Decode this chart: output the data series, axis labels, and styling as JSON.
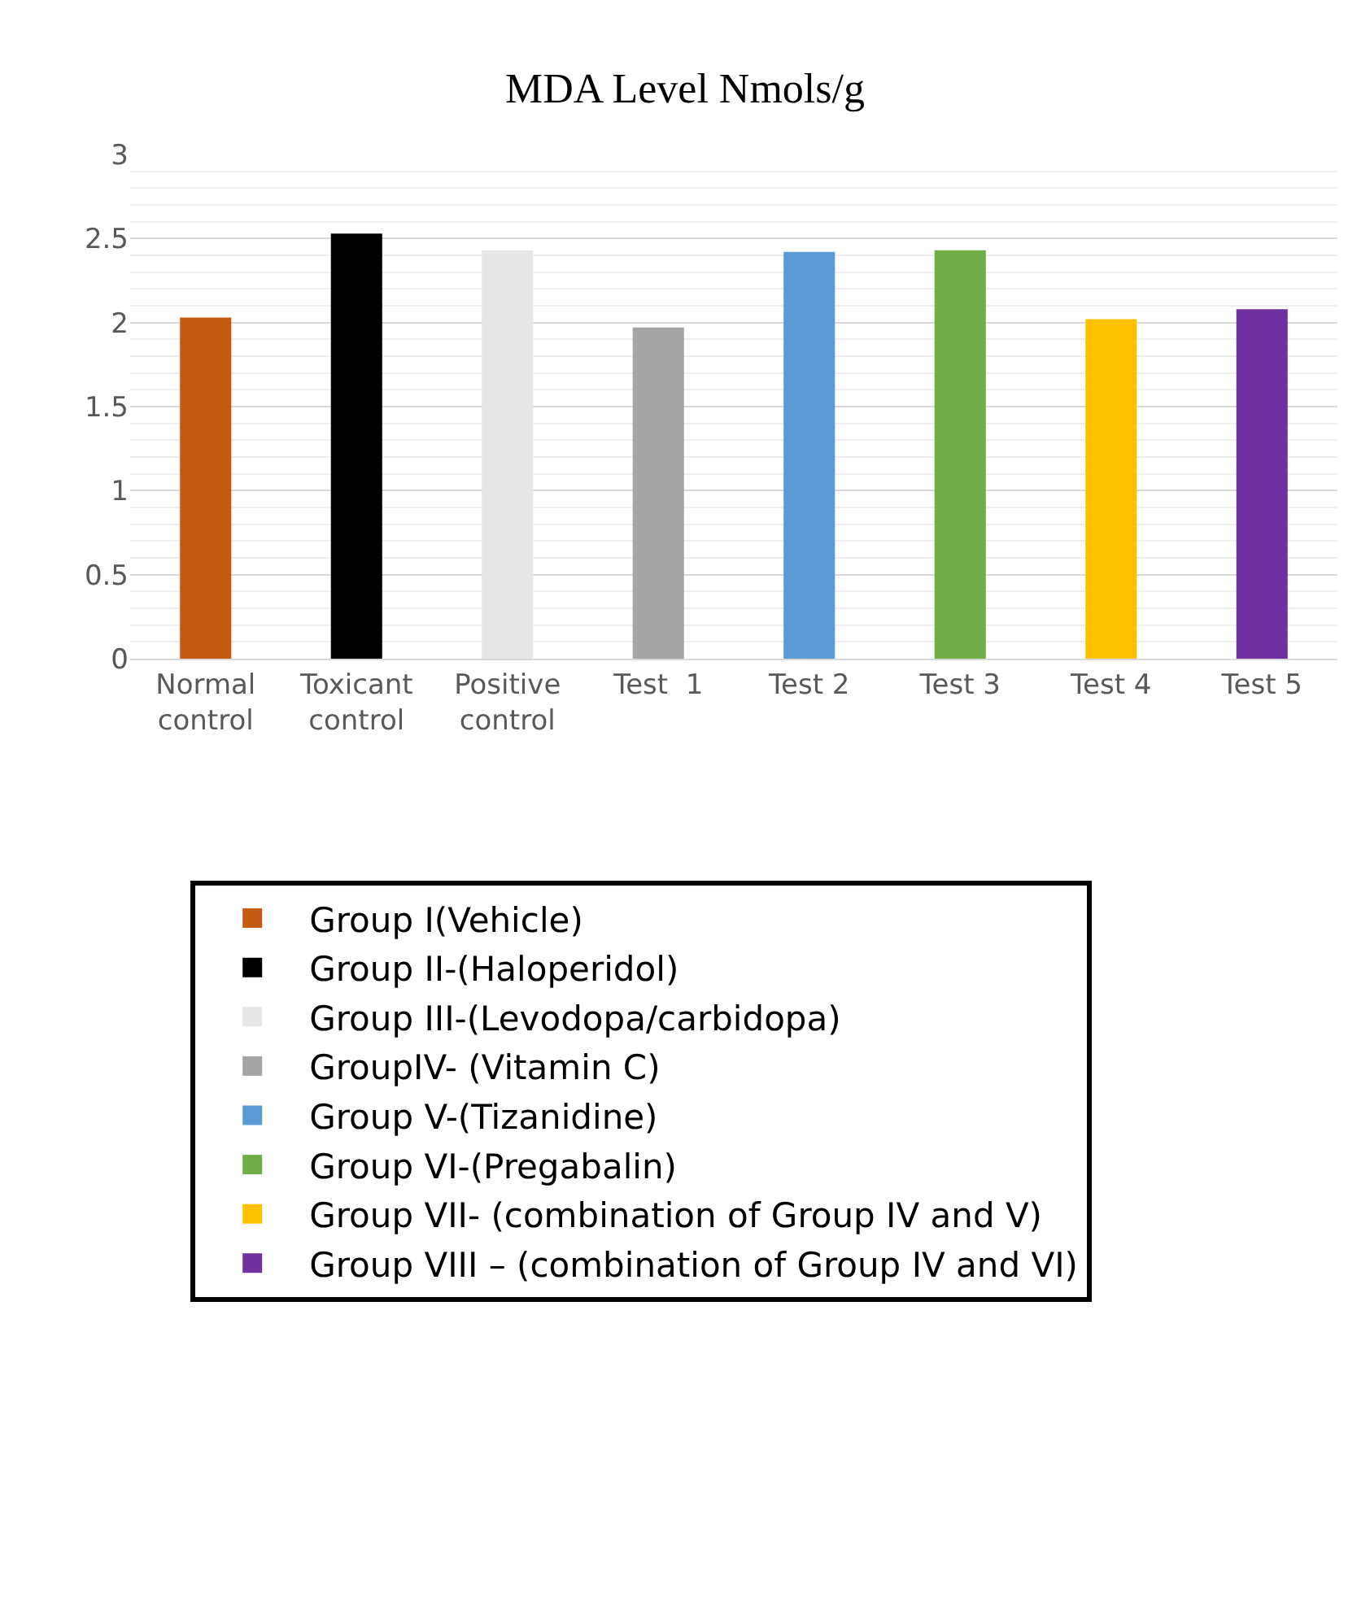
{
  "chart_data": {
    "type": "bar",
    "title": "MDA Level Nmols/g",
    "categories": [
      "Normal\ncontrol",
      "Toxicant\ncontrol",
      "Positive\ncontrol",
      "Test  1",
      "Test 2",
      "Test 3",
      "Test 4",
      "Test 5"
    ],
    "series": [
      {
        "name": "Group I(Vehicle)",
        "color": "#c55a11",
        "values": [
          2.03,
          null,
          null,
          null,
          null,
          null,
          null,
          null
        ]
      },
      {
        "name": "Group II-(Haloperidol)",
        "color": "#000000",
        "values": [
          null,
          2.53,
          null,
          null,
          null,
          null,
          null,
          null
        ]
      },
      {
        "name": "Group III-(Levodopa/carbidopa)",
        "color": "#e7e6e6",
        "values": [
          null,
          null,
          2.43,
          null,
          null,
          null,
          null,
          null
        ]
      },
      {
        "name": "GroupIV- (Vitamin C)",
        "color": "#a5a5a5",
        "values": [
          null,
          null,
          null,
          1.97,
          null,
          null,
          null,
          null
        ]
      },
      {
        "name": "Group V-(Tizanidine)",
        "color": "#5b9bd5",
        "values": [
          null,
          null,
          null,
          null,
          2.42,
          null,
          null,
          null
        ]
      },
      {
        "name": "Group VI-(Pregabalin)",
        "color": "#70ad47",
        "values": [
          null,
          null,
          null,
          null,
          null,
          2.43,
          null,
          null
        ]
      },
      {
        "name": "Group VII- (combination of Group IV and V)",
        "color": "#ffc000",
        "values": [
          null,
          null,
          null,
          null,
          null,
          null,
          2.02,
          null
        ]
      },
      {
        "name": "Group VIII – (combination of Group IV and VI)",
        "color": "#7030a0",
        "values": [
          null,
          null,
          null,
          null,
          null,
          null,
          null,
          2.08
        ]
      }
    ],
    "ylim": [
      0,
      3
    ],
    "yticks": [
      0,
      0.5,
      1,
      1.5,
      2,
      2.5,
      3
    ],
    "grid": "y",
    "legend": "bottom"
  }
}
